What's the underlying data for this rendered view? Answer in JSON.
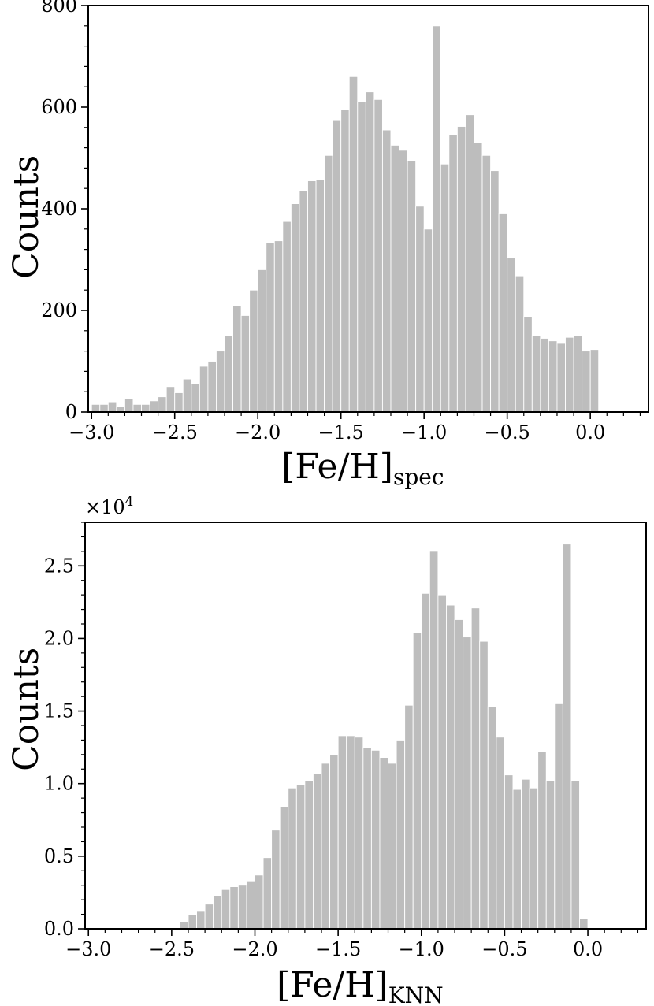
{
  "chart_data": [
    {
      "type": "bar",
      "histogram": true,
      "ylabel": "Counts",
      "xlabel": {
        "main": "[Fe/H]",
        "subscript": "spec"
      },
      "xlim": [
        -3.02,
        0.35
      ],
      "ylim": [
        0,
        800
      ],
      "x_ticks": [
        -3.0,
        -2.5,
        -2.0,
        -1.5,
        -1.0,
        -0.5,
        0.0
      ],
      "x_tick_labels": [
        "−3.0",
        "−2.5",
        "−2.0",
        "−1.5",
        "−1.0",
        "−0.5",
        "0.0"
      ],
      "y_ticks": [
        0,
        200,
        400,
        600,
        800
      ],
      "y_tick_labels": [
        "0",
        "200",
        "400",
        "600",
        "800"
      ],
      "bin_start": -3.0,
      "bin_width": 0.05,
      "values": [
        15,
        15,
        20,
        10,
        27,
        15,
        15,
        22,
        30,
        50,
        38,
        65,
        55,
        90,
        100,
        120,
        150,
        210,
        190,
        240,
        280,
        333,
        337,
        375,
        410,
        435,
        455,
        458,
        505,
        575,
        595,
        660,
        610,
        630,
        615,
        555,
        525,
        515,
        495,
        405,
        360,
        760,
        488,
        545,
        562,
        585,
        530,
        505,
        475,
        390,
        303,
        268,
        188,
        150,
        145,
        140,
        135,
        147,
        150,
        120,
        123
      ],
      "bar_color": "#bdbdbd",
      "grid": false
    },
    {
      "type": "bar",
      "histogram": true,
      "ylabel": "Counts",
      "xlabel": {
        "main": "[Fe/H]",
        "subscript": "KNN"
      },
      "y_multiplier": "×10",
      "y_multiplier_exp": "4",
      "xlim": [
        -3.02,
        0.35
      ],
      "ylim": [
        0,
        2.8
      ],
      "x_ticks": [
        -3.0,
        -2.5,
        -2.0,
        -1.5,
        -1.0,
        -0.5,
        0.0
      ],
      "x_tick_labels": [
        "−3.0",
        "−2.5",
        "−2.0",
        "−1.5",
        "−1.0",
        "−0.5",
        "0.0"
      ],
      "y_ticks": [
        0,
        0.5,
        1.0,
        1.5,
        2.0,
        2.5
      ],
      "y_tick_labels": [
        "0.0",
        "0.5",
        "1.0",
        "1.5",
        "2.0",
        "2.5"
      ],
      "bin_start": -2.45,
      "bin_width": 0.05,
      "values": [
        0.05,
        0.1,
        0.12,
        0.17,
        0.23,
        0.27,
        0.29,
        0.3,
        0.33,
        0.37,
        0.49,
        0.68,
        0.84,
        0.97,
        0.99,
        1.02,
        1.07,
        1.14,
        1.2,
        1.33,
        1.33,
        1.32,
        1.25,
        1.23,
        1.18,
        1.14,
        1.3,
        1.54,
        2.04,
        2.31,
        2.6,
        2.3,
        2.23,
        2.13,
        2.01,
        2.21,
        1.98,
        1.53,
        1.32,
        1.06,
        0.96,
        1.03,
        0.97,
        1.22,
        1.02,
        1.55,
        2.65,
        1.02,
        0.07
      ],
      "bar_color": "#bdbdbd",
      "grid": false
    }
  ]
}
